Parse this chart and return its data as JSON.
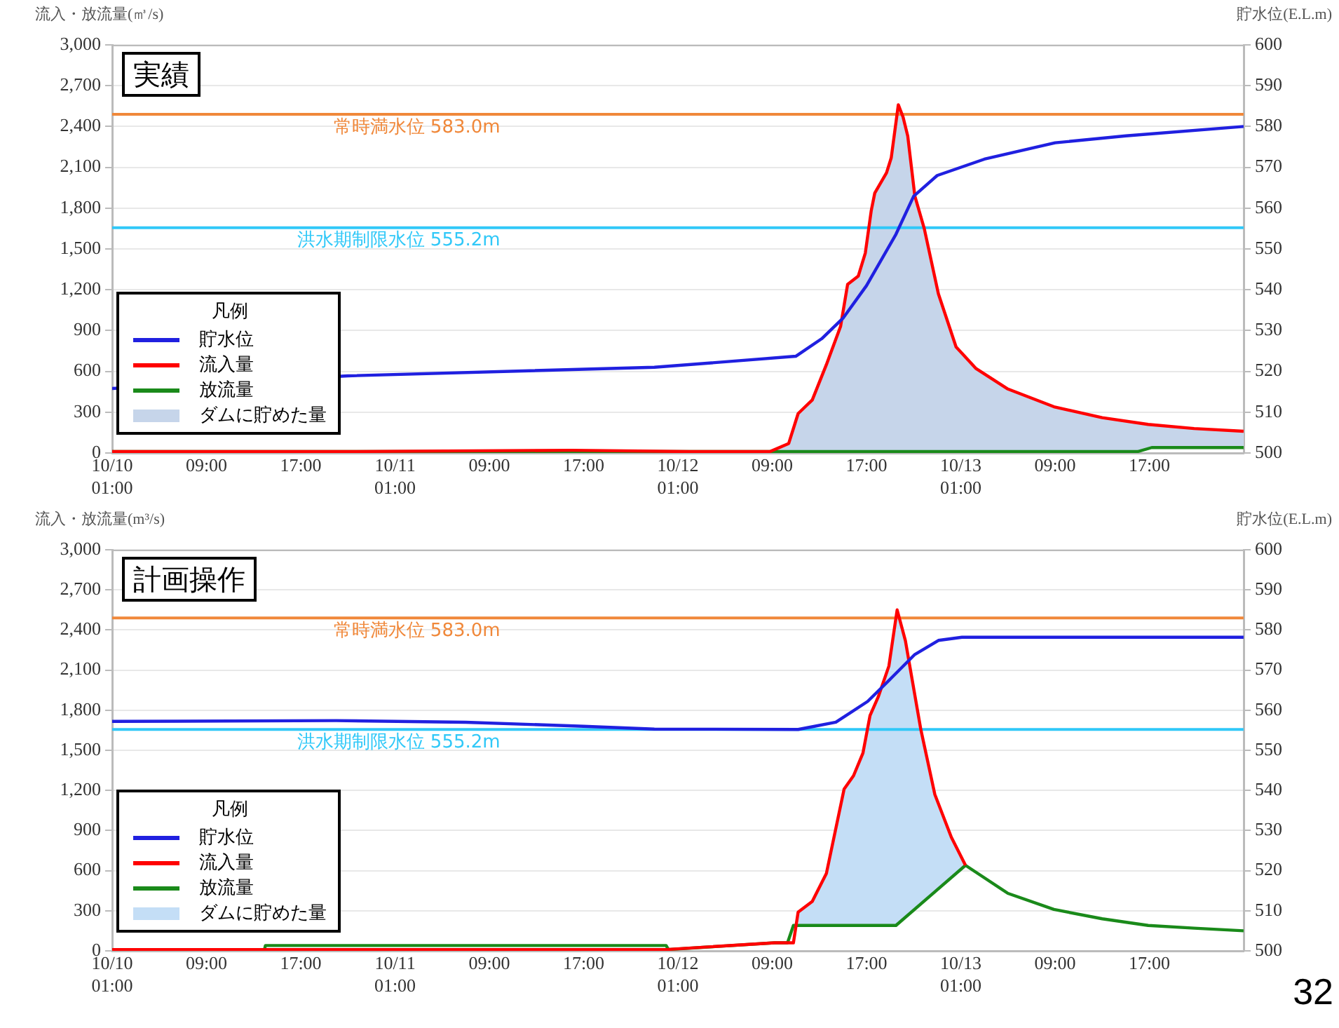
{
  "chart_data": [
    {
      "type": "line",
      "title": "実績",
      "ylabel": "流入・放流量(㎥/s)",
      "y2label": "貯水位(E.L.m)",
      "legend_title": "凡例",
      "legend": "bottom left",
      "grid": "y",
      "xlim": [
        "--10-10T01:00",
        "--10-14T01:00"
      ],
      "xticks": [
        {
          "value": "--10-10T01:00",
          "label": "10/10\n01:00"
        },
        {
          "value": "--10-10T09:00",
          "label": "09:00"
        },
        {
          "value": "--10-10T17:00",
          "label": "17:00"
        },
        {
          "value": "--10-11T01:00",
          "label": "10/11\n01:00"
        },
        {
          "value": "--10-11T09:00",
          "label": "09:00"
        },
        {
          "value": "--10-11T17:00",
          "label": "17:00"
        },
        {
          "value": "--10-12T01:00",
          "label": "10/12\n01:00"
        },
        {
          "value": "--10-12T09:00",
          "label": "09:00"
        },
        {
          "value": "--10-12T17:00",
          "label": "17:00"
        },
        {
          "value": "--10-13T01:00",
          "label": "10/13\n01:00"
        },
        {
          "value": "--10-13T09:00",
          "label": "09:00"
        },
        {
          "value": "--10-13T17:00",
          "label": "17:00"
        }
      ],
      "ylim": [
        0,
        3000
      ],
      "yticks": [
        0,
        300,
        600,
        900,
        {
          "value": 1200,
          "label": "1,200"
        },
        {
          "value": 1500,
          "label": "1,500"
        },
        {
          "value": 1800,
          "label": "1,800"
        },
        {
          "value": 2100,
          "label": "2,100"
        },
        {
          "value": 2400,
          "label": "2,400"
        },
        {
          "value": 2700,
          "label": "2,700"
        },
        {
          "value": 3000,
          "label": "3,000"
        }
      ],
      "y2lim": [
        500,
        600
      ],
      "y2ticks": [
        500,
        510,
        520,
        530,
        540,
        550,
        560,
        570,
        580,
        590,
        600
      ],
      "ref_lines": [
        {
          "axis": "y2",
          "value": 583.0,
          "label": "常時満水位 583.0m",
          "color": "#f0883a"
        },
        {
          "axis": "y2",
          "value": 555.2,
          "label": "洪水期制限水位 555.2m",
          "color": "#30c8f8"
        }
      ],
      "series": [
        {
          "name": "貯水位",
          "type": "line",
          "axis": "y2",
          "color": "#2020e0",
          "x": [
            "--10-10T01:00",
            "--10-10T21:00",
            "--10-11T23:00",
            "--10-12T11:00",
            "--10-12T13:12",
            "--10-12T15:00",
            "--10-12T17:00",
            "--10-12T19:30",
            "--10-12T21:00",
            "--10-12T23:00",
            "--10-13T03:00",
            "--10-13T09:00",
            "--10-13T15:00",
            "--10-14T01:00"
          ],
          "values": [
            515.8,
            518.9,
            521,
            523.7,
            528,
            533,
            541,
            553.6,
            562.9,
            568,
            572,
            576,
            577.7,
            580
          ]
        },
        {
          "name": "流入量",
          "type": "line",
          "color": "#ff0000",
          "x": [
            "--10-10T01:00",
            "--10-10T20:00",
            "--10-11T16:00",
            "--10-12T02:00",
            "--10-12T08:48",
            "--10-12T10:24",
            "--10-12T11:12",
            "--10-12T12:24",
            "--10-12T13:36",
            "--10-12T14:48",
            "--10-12T15:24",
            "--10-12T16:18",
            "--10-12T16:54",
            "--10-12T17:24",
            "--10-12T17:42",
            "--10-12T18:42",
            "--10-12T19:06",
            "--10-12T19:42",
            "--10-12T20:06",
            "--10-12T20:30",
            "--10-12T21:06",
            "--10-12T21:54",
            "--10-12T23:06",
            "--10-13T00:36",
            "--10-13T02:18",
            "--10-13T05:00",
            "--10-13T08:54",
            "--10-13T13:00",
            "--10-13T16:54",
            "--10-13T20:48",
            "--10-14T01:00"
          ],
          "values": [
            10,
            10,
            20,
            10,
            10,
            70,
            290,
            390,
            650,
            930,
            1240,
            1300,
            1470,
            1780,
            1910,
            2060,
            2170,
            2560,
            2470,
            2330,
            1890,
            1650,
            1170,
            780,
            620,
            470,
            340,
            260,
            210,
            180,
            160
          ]
        },
        {
          "name": "放流量",
          "type": "line",
          "color": "#1a8a1a",
          "x": [
            "--10-10T01:00",
            "--10-13T16:00",
            "--10-13T17:12",
            "--10-14T01:00"
          ],
          "values": [
            10,
            10,
            40,
            40
          ]
        },
        {
          "name": "ダムに貯めた量",
          "type": "area",
          "color": "#c6d5ea",
          "x": [
            "--10-12T08:48",
            "--10-12T10:24",
            "--10-12T11:12",
            "--10-12T12:24",
            "--10-12T13:36",
            "--10-12T14:48",
            "--10-12T15:24",
            "--10-12T16:18",
            "--10-12T16:54",
            "--10-12T17:24",
            "--10-12T17:42",
            "--10-12T18:42",
            "--10-12T19:06",
            "--10-12T19:42",
            "--10-12T20:06",
            "--10-12T20:30",
            "--10-12T21:06",
            "--10-12T21:54",
            "--10-12T23:06",
            "--10-13T00:36",
            "--10-13T02:18",
            "--10-13T05:00",
            "--10-13T08:54",
            "--10-13T13:00",
            "--10-13T16:54",
            "--10-13T20:48",
            "--10-14T01:00"
          ],
          "values": [
            10,
            70,
            290,
            390,
            650,
            930,
            1240,
            1300,
            1470,
            1780,
            1910,
            2060,
            2170,
            2560,
            2470,
            2330,
            1890,
            1650,
            1170,
            780,
            620,
            470,
            340,
            260,
            210,
            180,
            160
          ]
        }
      ]
    },
    {
      "type": "line",
      "title": "計画操作",
      "ylabel": "流入・放流量(m³/s)",
      "y2label": "貯水位(E.L.m)",
      "legend_title": "凡例",
      "legend": "bottom left",
      "grid": "y",
      "annotations": [
        "32"
      ],
      "xlim": [
        "--10-10T01:00",
        "--10-14T01:00"
      ],
      "xticks": [
        {
          "value": "--10-10T01:00",
          "label": "10/10\n01:00"
        },
        {
          "value": "--10-10T09:00",
          "label": "09:00"
        },
        {
          "value": "--10-10T17:00",
          "label": "17:00"
        },
        {
          "value": "--10-11T01:00",
          "label": "10/11\n01:00"
        },
        {
          "value": "--10-11T09:00",
          "label": "09:00"
        },
        {
          "value": "--10-11T17:00",
          "label": "17:00"
        },
        {
          "value": "--10-12T01:00",
          "label": "10/12\n01:00"
        },
        {
          "value": "--10-12T09:00",
          "label": "09:00"
        },
        {
          "value": "--10-12T17:00",
          "label": "17:00"
        },
        {
          "value": "--10-13T01:00",
          "label": "10/13\n01:00"
        },
        {
          "value": "--10-13T09:00",
          "label": "09:00"
        },
        {
          "value": "--10-13T17:00",
          "label": "17:00"
        }
      ],
      "ylim": [
        0,
        3000
      ],
      "yticks": [
        0,
        300,
        600,
        900,
        {
          "value": 1200,
          "label": "1,200"
        },
        {
          "value": 1500,
          "label": "1,500"
        },
        {
          "value": 1800,
          "label": "1,800"
        },
        {
          "value": 2100,
          "label": "2,100"
        },
        {
          "value": 2400,
          "label": "2,400"
        },
        {
          "value": 2700,
          "label": "2,700"
        },
        {
          "value": 3000,
          "label": "3,000"
        }
      ],
      "y2lim": [
        500,
        600
      ],
      "y2ticks": [
        500,
        510,
        520,
        530,
        540,
        550,
        560,
        570,
        580,
        590,
        600
      ],
      "ref_lines": [
        {
          "axis": "y2",
          "value": 583.0,
          "label": "常時満水位 583.0m",
          "color": "#f0883a"
        },
        {
          "axis": "y2",
          "value": 555.2,
          "label": "洪水期制限水位 555.2m",
          "color": "#30c8f8"
        }
      ],
      "series": [
        {
          "name": "貯水位",
          "type": "line",
          "axis": "y2",
          "color": "#2020e0",
          "x": [
            "--10-10T01:00",
            "--10-10T20:00",
            "--10-11T07:00",
            "--10-11T17:00",
            "--10-11T23:00",
            "--10-12T11:12",
            "--10-12T14:24",
            "--10-12T17:06",
            "--10-12T19:06",
            "--10-12T21:06",
            "--10-12T23:06",
            "--10-13T01:06",
            "--10-14T01:00"
          ],
          "values": [
            557.2,
            557.4,
            557,
            556,
            555.3,
            555.2,
            557,
            562.2,
            568,
            573.9,
            577.4,
            578.2,
            578.2
          ]
        },
        {
          "name": "流入量",
          "type": "line",
          "color": "#ff0000",
          "x": [
            "--10-10T01:00",
            "--10-10T14:00",
            "--10-12T00:00",
            "--10-12T09:12",
            "--10-12T10:48",
            "--10-12T11:12",
            "--10-12T12:24",
            "--10-12T13:36",
            "--10-12T15:06",
            "--10-12T15:54",
            "--10-12T16:42",
            "--10-12T17:18",
            "--10-12T18:00",
            "--10-12T18:54",
            "--10-12T19:36",
            "--10-12T20:18",
            "--10-12T21:36",
            "--10-12T22:48",
            "--10-13T00:12",
            "--10-13T01:24"
          ],
          "values": [
            10,
            10,
            10,
            60,
            60,
            290,
            370,
            580,
            1210,
            1310,
            1480,
            1760,
            1900,
            2130,
            2550,
            2320,
            1660,
            1170,
            850,
            640
          ]
        },
        {
          "name": "放流量",
          "type": "line",
          "color": "#1a8a1a",
          "x": [
            "--10-10T01:00",
            "--10-10T13:54",
            "--10-10T14:00",
            "--10-12T00:00",
            "--10-12T00:12",
            "--10-12T09:12",
            "--10-12T10:18",
            "--10-12T10:48",
            "--10-12T19:30",
            "--10-13T01:24",
            "--10-13T05:00",
            "--10-13T08:54",
            "--10-13T13:00",
            "--10-13T16:54",
            "--10-13T20:48",
            "--10-14T01:00"
          ],
          "values": [
            0,
            0,
            40,
            40,
            10,
            60,
            60,
            190,
            190,
            640,
            430,
            310,
            240,
            190,
            170,
            150
          ]
        },
        {
          "name": "ダムに貯めた量",
          "type": "area",
          "color": "#c4def6",
          "x": [
            "--10-12T11:12",
            "--10-12T12:24",
            "--10-12T13:36",
            "--10-12T15:06",
            "--10-12T15:54",
            "--10-12T16:42",
            "--10-12T17:18",
            "--10-12T18:00",
            "--10-12T18:54",
            "--10-12T19:36",
            "--10-12T20:18",
            "--10-12T21:36",
            "--10-12T22:48",
            "--10-13T00:12",
            "--10-13T01:24"
          ],
          "values": [
            290,
            370,
            580,
            1210,
            1310,
            1480,
            1760,
            1900,
            2130,
            2550,
            2320,
            1660,
            1170,
            850,
            640
          ]
        }
      ]
    }
  ]
}
